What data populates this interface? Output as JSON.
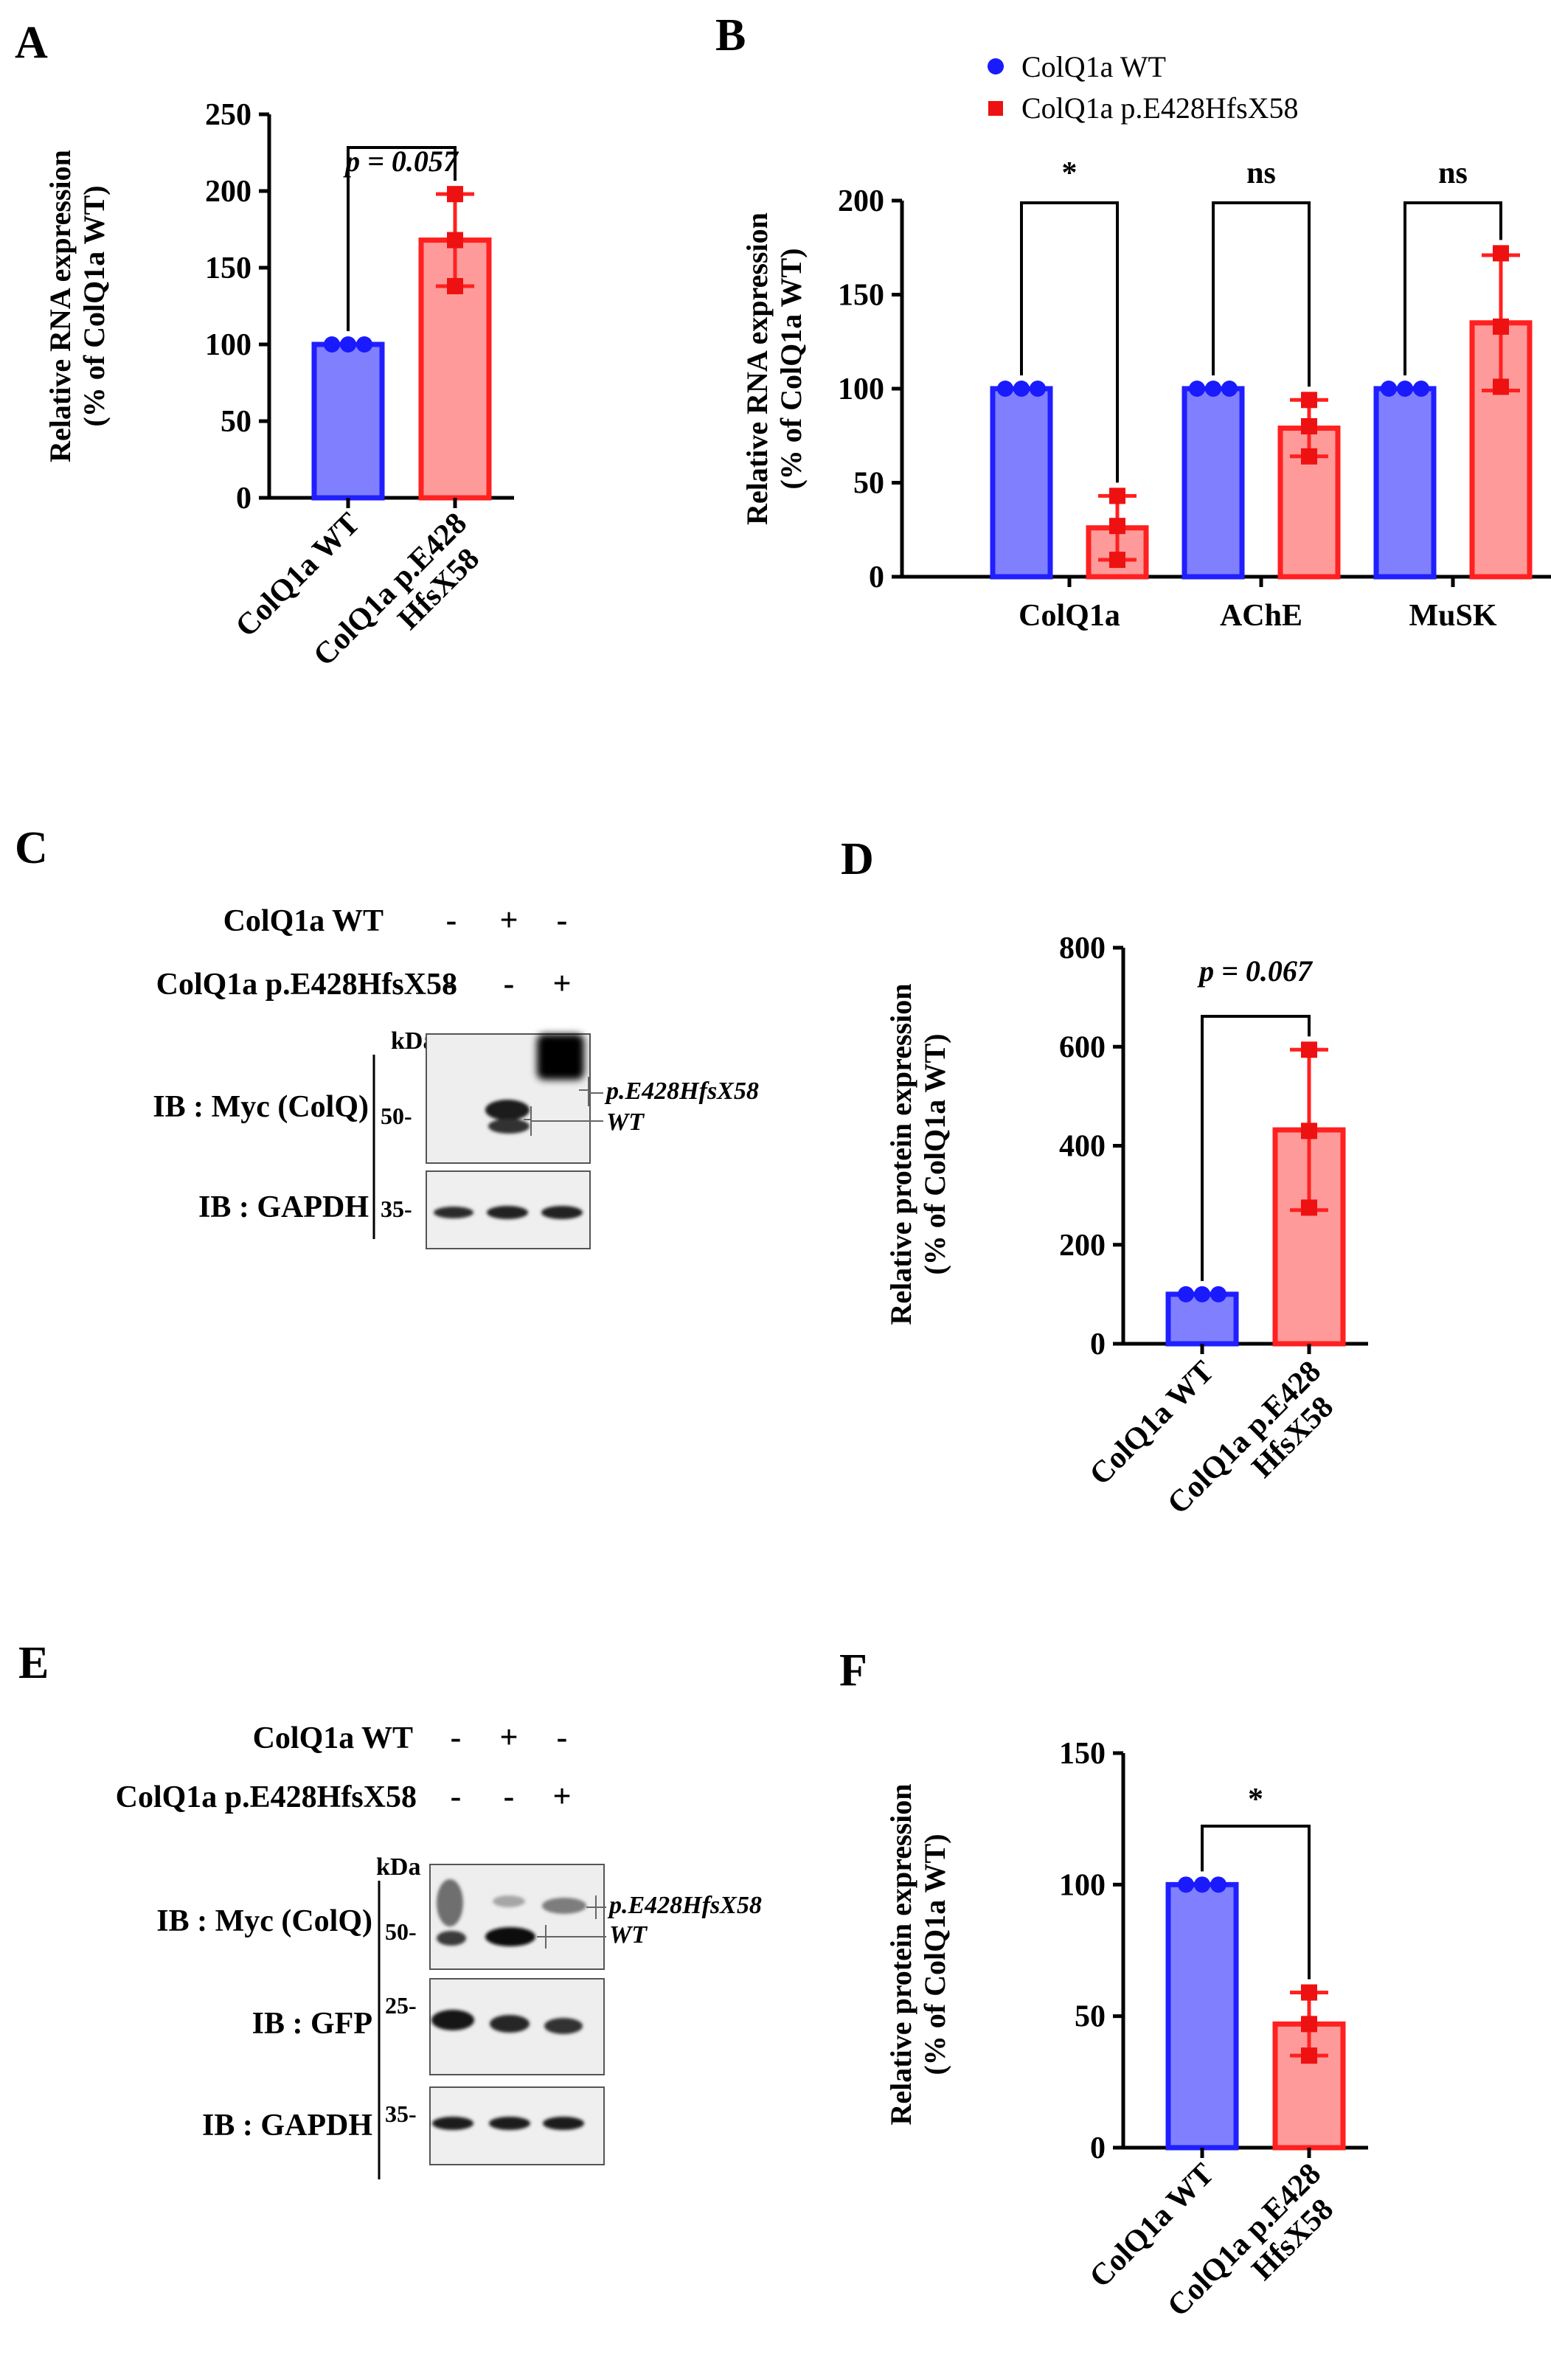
{
  "figure": {
    "panel_letters": [
      "A",
      "B",
      "C",
      "D",
      "E",
      "F"
    ],
    "colors": {
      "wt_fill": "#8080ff",
      "wt_edge": "#1f1fff",
      "wt_dot": "#1a1aff",
      "mut_fill": "#ff9a9a",
      "mut_edge": "#ff2020",
      "mut_dot": "#ee1111"
    },
    "legend": {
      "wt": "ColQ1a WT",
      "mut": "ColQ1a p.E428HfsX58"
    }
  },
  "chart_data": [
    {
      "id": "A",
      "type": "bar",
      "ylabel": [
        "Relative RNA expression",
        "(% of ColQ1a WT)"
      ],
      "ylim": [
        0,
        250
      ],
      "yticks": [
        0,
        50,
        100,
        150,
        200,
        250
      ],
      "categories": [
        [
          "ColQ1a WT"
        ],
        [
          "ColQ1a p.E428",
          "HfsX58"
        ]
      ],
      "values": [
        100,
        168
      ],
      "errors": [
        0,
        30
      ],
      "points": [
        [
          100,
          100,
          100
        ],
        [
          198,
          168,
          138
        ]
      ],
      "significance": [
        {
          "from": 0,
          "to": 1,
          "label": "p = 0.057",
          "italic": true
        }
      ]
    },
    {
      "id": "B",
      "type": "bar",
      "ylabel": [
        "Relative RNA expression",
        "(% of ColQ1a WT)"
      ],
      "ylim": [
        0,
        200
      ],
      "yticks": [
        0,
        50,
        100,
        150,
        200
      ],
      "categories": [
        "ColQ1a",
        "AChE",
        "MuSK"
      ],
      "series": [
        {
          "name": "ColQ1a WT",
          "values": [
            100,
            100,
            100
          ],
          "errors": [
            0,
            0,
            0
          ],
          "points": [
            [
              100,
              100,
              100
            ],
            [
              100,
              100,
              100
            ],
            [
              100,
              100,
              100
            ]
          ]
        },
        {
          "name": "ColQ1a p.E428HfsX58",
          "values": [
            26,
            79,
            135
          ],
          "errors": [
            17,
            15,
            36
          ],
          "points": [
            [
              43,
              27,
              9
            ],
            [
              94,
              80,
              64
            ],
            [
              172,
              133,
              101
            ]
          ]
        }
      ],
      "significance": [
        {
          "group": 0,
          "label": "*"
        },
        {
          "group": 1,
          "label": "ns"
        },
        {
          "group": 2,
          "label": "ns"
        }
      ]
    },
    {
      "id": "D",
      "type": "bar",
      "ylabel": [
        "Relative protein expression",
        "(% of ColQ1a WT)"
      ],
      "ylim": [
        0,
        800
      ],
      "yticks": [
        0,
        200,
        400,
        600,
        800
      ],
      "categories": [
        [
          "ColQ1a WT"
        ],
        [
          "ColQ1a p.E428",
          "HfsX58"
        ]
      ],
      "values": [
        100,
        432
      ],
      "errors": [
        0,
        162
      ],
      "points": [
        [
          100,
          100,
          100
        ],
        [
          594,
          430,
          275
        ]
      ],
      "significance": [
        {
          "from": 0,
          "to": 1,
          "label": "p = 0.067",
          "italic": true
        }
      ]
    },
    {
      "id": "F",
      "type": "bar",
      "ylabel": [
        "Relative protein expression",
        "(% of ColQ1a WT)"
      ],
      "ylim": [
        0,
        150
      ],
      "yticks": [
        0,
        50,
        100,
        150
      ],
      "categories": [
        [
          "ColQ1a WT"
        ],
        [
          "ColQ1a p.E428",
          "HfsX58"
        ]
      ],
      "values": [
        100,
        47
      ],
      "errors": [
        0,
        12
      ],
      "points": [
        [
          100,
          100,
          100
        ],
        [
          59,
          47,
          35
        ]
      ],
      "significance": [
        {
          "from": 0,
          "to": 1,
          "label": "*",
          "italic": false
        }
      ]
    }
  ],
  "blots": {
    "C": {
      "conditions": [
        {
          "label": "ColQ1a WT",
          "signs": [
            "-",
            "+",
            "-"
          ]
        },
        {
          "label": "ColQ1a p.E428HfsX58",
          "signs": [
            "-",
            "-",
            "+"
          ]
        }
      ],
      "kda_label": "kDa",
      "rows": [
        {
          "label": "IB : Myc (ColQ)",
          "marker": "50-"
        },
        {
          "label": "IB : GAPDH",
          "marker": "35-"
        }
      ],
      "band_labels": [
        "p.E428HfsX58",
        "WT"
      ]
    },
    "E": {
      "conditions": [
        {
          "label": "ColQ1a WT",
          "signs": [
            "-",
            "+",
            "-"
          ]
        },
        {
          "label": "ColQ1a p.E428HfsX58",
          "signs": [
            "-",
            "-",
            "+"
          ]
        }
      ],
      "kda_label": "kDa",
      "rows": [
        {
          "label": "IB : Myc (ColQ)",
          "marker": "50-"
        },
        {
          "label": "IB : GFP",
          "marker": "25-"
        },
        {
          "label": "IB : GAPDH",
          "marker": "35-"
        }
      ],
      "band_labels": [
        "p.E428HfsX58",
        "WT"
      ]
    }
  }
}
